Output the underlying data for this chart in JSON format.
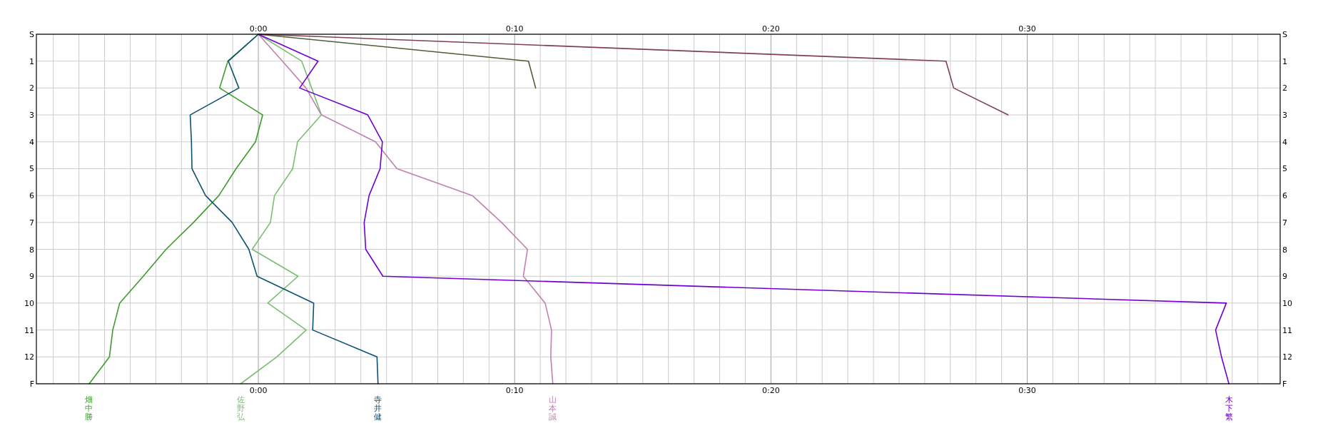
{
  "chart_data": {
    "type": "line",
    "xlim": [
      -8.66,
      39.87
    ],
    "xticks": [
      {
        "value": -8,
        "label": null
      },
      {
        "value": -7,
        "label": null
      },
      {
        "value": -6,
        "label": null
      },
      {
        "value": -5,
        "label": null
      },
      {
        "value": -4,
        "label": null
      },
      {
        "value": -3,
        "label": null
      },
      {
        "value": -2,
        "label": null
      },
      {
        "value": -1,
        "label": null
      },
      {
        "value": 0,
        "label": "0:00"
      },
      {
        "value": 1,
        "label": null
      },
      {
        "value": 2,
        "label": null
      },
      {
        "value": 3,
        "label": null
      },
      {
        "value": 4,
        "label": null
      },
      {
        "value": 5,
        "label": null
      },
      {
        "value": 6,
        "label": null
      },
      {
        "value": 7,
        "label": null
      },
      {
        "value": 8,
        "label": null
      },
      {
        "value": 9,
        "label": null
      },
      {
        "value": 10,
        "label": "0:10"
      },
      {
        "value": 11,
        "label": null
      },
      {
        "value": 12,
        "label": null
      },
      {
        "value": 13,
        "label": null
      },
      {
        "value": 14,
        "label": null
      },
      {
        "value": 15,
        "label": null
      },
      {
        "value": 16,
        "label": null
      },
      {
        "value": 17,
        "label": null
      },
      {
        "value": 18,
        "label": null
      },
      {
        "value": 19,
        "label": null
      },
      {
        "value": 20,
        "label": "0:20"
      },
      {
        "value": 21,
        "label": null
      },
      {
        "value": 22,
        "label": null
      },
      {
        "value": 23,
        "label": null
      },
      {
        "value": 24,
        "label": null
      },
      {
        "value": 25,
        "label": null
      },
      {
        "value": 26,
        "label": null
      },
      {
        "value": 27,
        "label": null
      },
      {
        "value": 28,
        "label": null
      },
      {
        "value": 29,
        "label": null
      },
      {
        "value": 30,
        "label": "0:30"
      },
      {
        "value": 31,
        "label": null
      },
      {
        "value": 32,
        "label": null
      },
      {
        "value": 33,
        "label": null
      },
      {
        "value": 34,
        "label": null
      },
      {
        "value": 35,
        "label": null
      },
      {
        "value": 36,
        "label": null
      },
      {
        "value": 37,
        "label": null
      },
      {
        "value": 38,
        "label": null
      },
      {
        "value": 39,
        "label": null
      }
    ],
    "x2lim": [
      -8.66,
      39.87
    ],
    "x2ticks": [
      {
        "value": 0,
        "label": "0:00"
      },
      {
        "value": 10,
        "label": "0:10"
      },
      {
        "value": 20,
        "label": "0:20"
      },
      {
        "value": 30,
        "label": "0:30"
      }
    ],
    "ylim": [
      13,
      0
    ],
    "yticks": [
      {
        "value": 0,
        "label": "S"
      },
      1,
      2,
      3,
      4,
      5,
      6,
      7,
      8,
      9,
      10,
      11,
      12,
      {
        "value": 13,
        "label": "F"
      }
    ],
    "y2lim": [
      13,
      0
    ],
    "y2ticks": [
      {
        "value": 0,
        "label": "S"
      },
      1,
      2,
      3,
      4,
      5,
      6,
      7,
      8,
      9,
      10,
      11,
      12,
      {
        "value": 13,
        "label": "F"
      }
    ],
    "grid": true,
    "series": [
      {
        "color": "#4f5f35",
        "x": [
          0,
          10.54,
          10.82
        ],
        "values": [
          0,
          1,
          2
        ]
      },
      {
        "color": "#80404f",
        "x": [
          0,
          26.83,
          27.13,
          29.25
        ],
        "values": [
          0,
          1,
          2,
          3
        ]
      },
      {
        "name": "畑中勝",
        "color": "#3c9c2c",
        "x": [
          0,
          -1.19,
          -1.51,
          0.17,
          -0.11,
          -0.87,
          -1.54,
          -2.53,
          -3.6,
          -4.49,
          -5.41,
          -5.68,
          -5.81,
          -6.6
        ],
        "values": [
          0,
          1,
          2,
          3,
          4,
          5,
          6,
          7,
          8,
          9,
          10,
          11,
          12,
          13
        ]
      },
      {
        "name": "佐野弘",
        "color": "#78c070",
        "x": [
          0,
          1.69,
          2.08,
          2.46,
          1.53,
          1.34,
          0.63,
          0.47,
          -0.24,
          1.55,
          0.37,
          1.87,
          0.72,
          -0.69
        ],
        "values": [
          0,
          1,
          2,
          3,
          4,
          5,
          6,
          7,
          8,
          9,
          10,
          11,
          12,
          13
        ]
      },
      {
        "name": "寺井健",
        "color": "#0c5272",
        "x": [
          0,
          -1.17,
          -0.76,
          -2.66,
          -2.61,
          -2.59,
          -2.06,
          -1.02,
          -0.37,
          -0.05,
          2.16,
          2.12,
          4.63,
          4.67
        ],
        "values": [
          0,
          1,
          2,
          3,
          4,
          5,
          6,
          7,
          8,
          9,
          10,
          11,
          12,
          13
        ]
      },
      {
        "name": "山本誠",
        "color": "#c080b0",
        "x": [
          0,
          0.94,
          1.86,
          2.46,
          4.57,
          5.41,
          8.35,
          9.49,
          10.5,
          10.34,
          11.19,
          11.44,
          11.41,
          11.49
        ],
        "values": [
          0,
          1,
          2,
          3,
          4,
          5,
          6,
          7,
          8,
          9,
          10,
          11,
          12,
          13
        ]
      },
      {
        "name": "木下繁",
        "color": "#7000d0",
        "x": [
          0,
          2.33,
          1.61,
          4.27,
          4.84,
          4.75,
          4.32,
          4.13,
          4.19,
          4.86,
          37.77,
          37.35,
          37.58,
          37.87
        ],
        "values": [
          0,
          1,
          2,
          3,
          4,
          5,
          6,
          7,
          8,
          9,
          10,
          11,
          12,
          13
        ]
      }
    ]
  }
}
